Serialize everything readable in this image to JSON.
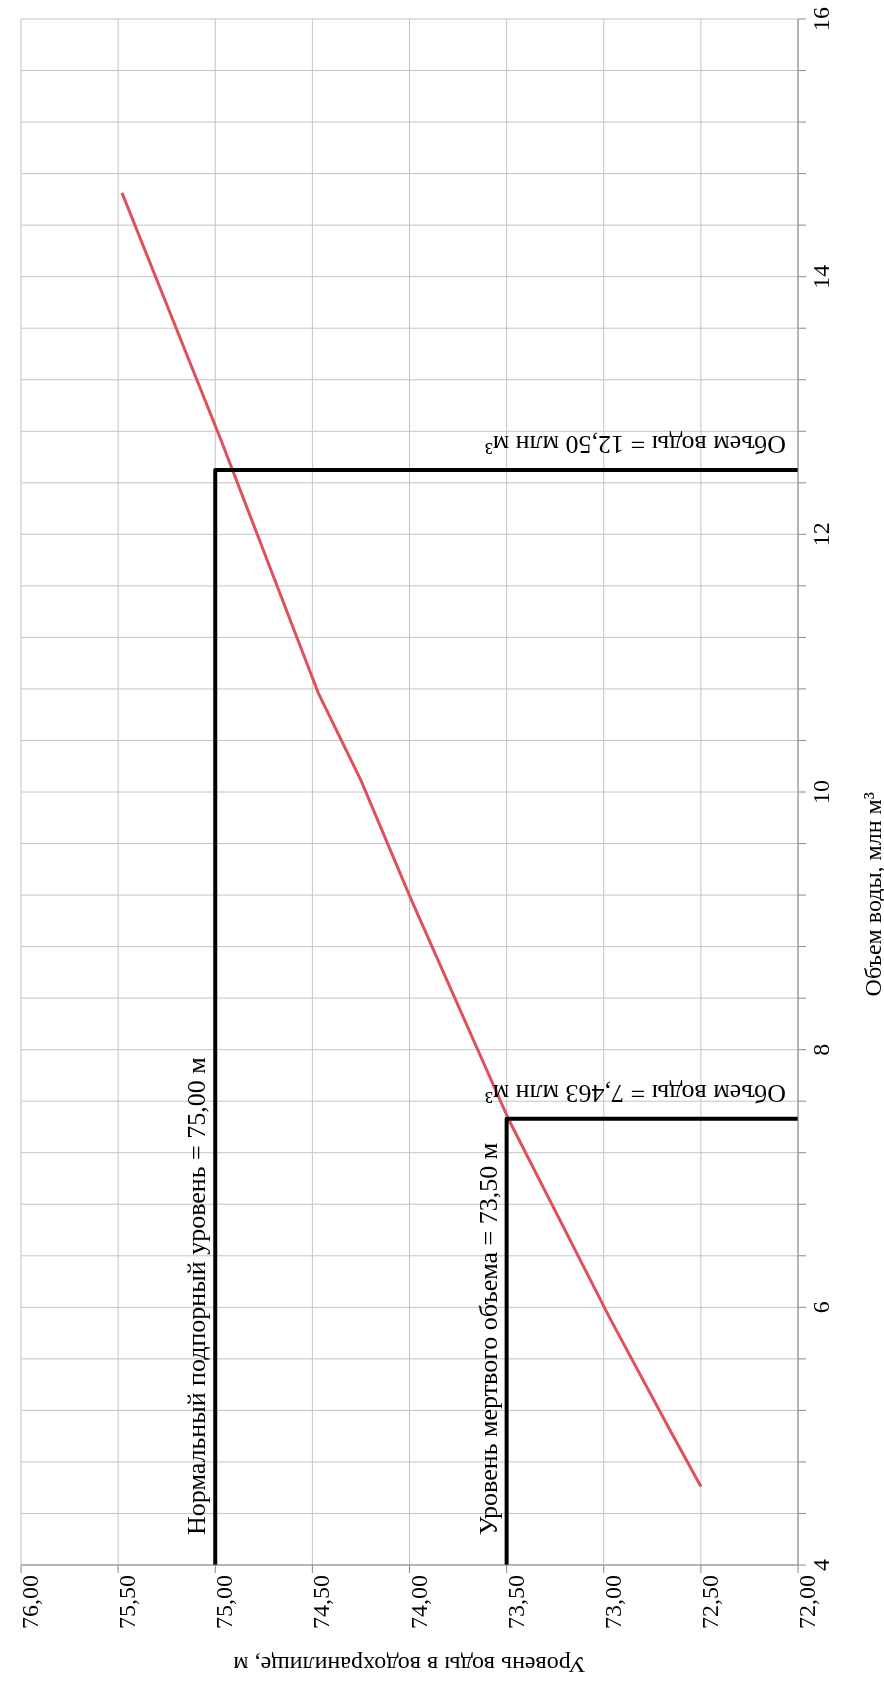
{
  "chart_data": {
    "type": "line",
    "xlabel": "Уровень воды в водохранилище, м",
    "ylabel": "Объем воды, млн м³",
    "xlim": [
      76,
      72
    ],
    "xticks": [
      {
        "value": 76,
        "label": "76,00"
      },
      {
        "value": 75.5,
        "label": "75,50"
      },
      {
        "value": 75,
        "label": "75,00"
      },
      {
        "value": 74.5,
        "label": "74,50"
      },
      {
        "value": 74,
        "label": "74,00"
      },
      {
        "value": 73.5,
        "label": "73,50"
      },
      {
        "value": 73,
        "label": "73,00"
      },
      {
        "value": 72.5,
        "label": "72,50"
      },
      {
        "value": 72,
        "label": "72,00"
      }
    ],
    "ylim": [
      4,
      16
    ],
    "yticks": [
      4,
      {
        "value": 4.4,
        "label": null
      },
      {
        "value": 4.8,
        "label": null
      },
      {
        "value": 5.2,
        "label": null
      },
      {
        "value": 5.6,
        "label": null
      },
      6,
      {
        "value": 6.4,
        "label": null
      },
      {
        "value": 6.8,
        "label": null
      },
      {
        "value": 7.2,
        "label": null
      },
      {
        "value": 7.6,
        "label": null
      },
      8,
      {
        "value": 8.4,
        "label": null
      },
      {
        "value": 8.8,
        "label": null
      },
      {
        "value": 9.2,
        "label": null
      },
      {
        "value": 9.6,
        "label": null
      },
      10,
      {
        "value": 10.4,
        "label": null
      },
      {
        "value": 10.8,
        "label": null
      },
      {
        "value": 11.2,
        "label": null
      },
      {
        "value": 11.6,
        "label": null
      },
      12,
      {
        "value": 12.4,
        "label": null
      },
      {
        "value": 12.8,
        "label": null
      },
      {
        "value": 13.2,
        "label": null
      },
      {
        "value": 13.6,
        "label": null
      },
      14,
      {
        "value": 14.4,
        "label": null
      },
      {
        "value": 14.8,
        "label": null
      },
      {
        "value": 15.2,
        "label": null
      },
      {
        "value": 15.6,
        "label": null
      },
      16
    ],
    "grid": true,
    "series": [
      {
        "color": "#e0505c",
        "x": [
          72.5,
          72.66,
          72.97,
          73.49,
          73.99,
          74.25,
          74.47,
          74.97,
          75.48
        ],
        "values": [
          4.61,
          5.05,
          5.92,
          7.46,
          9.16,
          10.09,
          10.77,
          12.73,
          14.65
        ]
      },
      {
        "color": "#000000",
        "x": [
          75,
          75,
          72
        ],
        "values": [
          4,
          12.5,
          12.5
        ]
      },
      {
        "color": "#000000",
        "x": [
          73.5,
          73.5,
          72
        ],
        "values": [
          4,
          7.463,
          7.463
        ]
      }
    ],
    "annotations": [
      {
        "text": "Нормальный подпорный уровень = 75,00 м",
        "x": 75,
        "y": 4
      },
      {
        "text": "Уровень мертвого объема = 73,50 м",
        "x": 73.5,
        "y": 4
      },
      {
        "text": "Объем воды = 12,50 млн м³",
        "x": 72,
        "y": 12.5
      },
      {
        "text": "Объем воды = 7,463 млн м³",
        "x": 72,
        "y": 7.463
      }
    ]
  }
}
